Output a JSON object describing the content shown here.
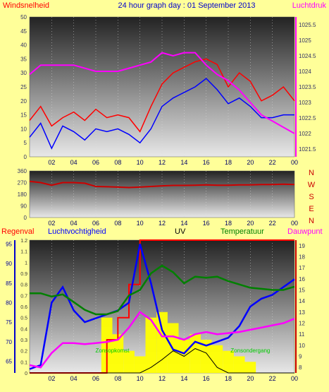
{
  "title": "24 hour graph day : 01 September 2013",
  "colors": {
    "background": "#ffff99",
    "wind": "#ff0000",
    "gust": "#0000ff",
    "pressure": "#ff00ff",
    "direction": "#cc0000",
    "rain": "#ff0000",
    "humidity": "#0000ff",
    "uv": "#ffff00",
    "temperature": "#008000",
    "dewpoint": "#ff00ff",
    "solar": "#000000"
  },
  "x_ticks": [
    "02",
    "04",
    "06",
    "08",
    "10",
    "12",
    "14",
    "16",
    "18",
    "20",
    "22",
    "00"
  ],
  "chart_data": [
    {
      "type": "line",
      "left_label": "Windsnelheid",
      "right_label": "Luchtdruk",
      "y_left": {
        "range": [
          0,
          50
        ],
        "ticks": [
          "0",
          "5",
          "10",
          "15",
          "20",
          "25",
          "30",
          "35",
          "40",
          "45",
          "50"
        ]
      },
      "y_right": {
        "range": [
          1021.25,
          1025.75
        ],
        "ticks": [
          "1021.5",
          "1022",
          "1022.5",
          "1023",
          "1023.5",
          "1024",
          "1024.5",
          "1025",
          "1025.5"
        ]
      },
      "x": [
        0,
        1,
        2,
        3,
        4,
        5,
        6,
        7,
        8,
        9,
        10,
        11,
        12,
        13,
        14,
        15,
        16,
        17,
        18,
        19,
        20,
        21,
        22,
        23,
        24
      ],
      "series": [
        {
          "key": "wind",
          "axis": "left",
          "values": [
            13,
            18,
            11,
            14,
            16,
            13,
            17,
            14,
            15,
            14,
            9,
            18,
            26,
            30,
            32,
            34,
            35,
            33,
            25,
            30,
            27,
            20,
            22,
            25,
            20
          ]
        },
        {
          "key": "gust",
          "axis": "left",
          "values": [
            7,
            12,
            3,
            11,
            9,
            6,
            10,
            9,
            10,
            8,
            5,
            10,
            18,
            21,
            23,
            25,
            28,
            24,
            19,
            21,
            18,
            14,
            14,
            15,
            15
          ]
        },
        {
          "key": "pressure",
          "axis": "right",
          "values": [
            1023.9,
            1024.2,
            1024.2,
            1024.2,
            1024.2,
            1024.1,
            1024.0,
            1024.0,
            1024.0,
            1024.1,
            1024.2,
            1024.3,
            1024.6,
            1024.5,
            1024.6,
            1024.6,
            1024.2,
            1023.9,
            1023.7,
            1023.4,
            1023.0,
            1022.6,
            1022.4,
            1022.2,
            1022.0
          ]
        }
      ]
    },
    {
      "type": "line",
      "y_left": {
        "range": [
          0,
          360
        ],
        "ticks": [
          "0",
          "90",
          "180",
          "270",
          "360"
        ]
      },
      "compass": [
        "N",
        "W",
        "S",
        "E",
        "N"
      ],
      "x": [
        0,
        1,
        2,
        3,
        4,
        5,
        6,
        7,
        8,
        9,
        10,
        11,
        12,
        13,
        14,
        15,
        16,
        17,
        18,
        19,
        20,
        21,
        22,
        23,
        24
      ],
      "series": [
        {
          "key": "direction",
          "axis": "left",
          "values": [
            280,
            270,
            250,
            270,
            270,
            265,
            240,
            238,
            235,
            232,
            235,
            240,
            245,
            248,
            248,
            250,
            252,
            250,
            250,
            252,
            252,
            255,
            255,
            258,
            255
          ]
        }
      ]
    },
    {
      "type": "line",
      "labels": [
        "Regenval",
        "Luchtvochtigheid",
        "UV",
        "Temperatuur",
        "Dauwpunt"
      ],
      "y_left": {
        "range": [
          62,
          96
        ],
        "ticks": [
          "65",
          "70",
          "75",
          "80",
          "85",
          "90",
          "95"
        ]
      },
      "y_uv": {
        "range": [
          0,
          1.2
        ],
        "ticks": [
          "0",
          "0.1",
          "0.2",
          "0.3",
          "0.4",
          "0.5",
          "0.6",
          "0.7",
          "0.8",
          "0.9",
          "1",
          "1.1",
          "1.2"
        ]
      },
      "y_right": {
        "range": [
          7.5,
          19.5
        ],
        "ticks": [
          "8",
          "9",
          "10",
          "11",
          "12",
          "13",
          "14",
          "15",
          "16",
          "17",
          "18",
          "19"
        ]
      },
      "annotations": [
        "Zonsopkomst",
        "Zonsondergang"
      ],
      "x": [
        0,
        1,
        2,
        3,
        4,
        5,
        6,
        7,
        8,
        9,
        10,
        11,
        12,
        13,
        14,
        15,
        16,
        17,
        18,
        19,
        20,
        21,
        22,
        23,
        24
      ],
      "series": [
        {
          "key": "humidity",
          "axis": "left",
          "values": [
            63,
            64,
            80,
            84,
            78,
            75,
            76,
            77,
            78,
            80,
            95,
            85,
            73,
            68,
            67,
            70,
            69,
            70,
            71,
            74,
            79,
            81,
            82,
            84,
            86
          ]
        },
        {
          "key": "temperature",
          "axis": "right",
          "values": [
            14.7,
            14.7,
            14.4,
            14.6,
            13.9,
            13.2,
            12.8,
            12.8,
            13.1,
            14.5,
            15.0,
            16.5,
            17.2,
            16.6,
            15.6,
            16.2,
            16.1,
            16.2,
            15.8,
            15.5,
            15.2,
            15.1,
            15.0,
            15.0,
            15.3
          ]
        },
        {
          "key": "dewpoint",
          "axis": "right",
          "values": [
            8.2,
            8.0,
            9.3,
            10.2,
            10.2,
            10.1,
            10.2,
            10.3,
            10.5,
            11.6,
            13.0,
            12.3,
            10.8,
            10.8,
            10.5,
            11.0,
            11.2,
            11.0,
            11.1,
            11.2,
            11.4,
            11.6,
            11.8,
            12.0,
            12.4
          ]
        },
        {
          "key": "rain",
          "axis": "uv",
          "values": [
            0,
            0,
            0,
            0,
            0,
            0,
            0,
            0.3,
            0.5,
            0.8,
            1.2,
            1.2,
            1.2,
            1.2,
            1.2,
            1.2,
            1.2,
            1.2,
            1.2,
            1.2,
            1.2,
            1.2,
            1.2,
            1.2,
            1.2
          ]
        },
        {
          "key": "uv",
          "axis": "uv",
          "type": "bar",
          "values": [
            0,
            0,
            0,
            0,
            0,
            0,
            0,
            0.5,
            0.35,
            0.2,
            0.15,
            0.5,
            0.55,
            0.45,
            0.3,
            0.35,
            0.3,
            0.25,
            0.2,
            0.15,
            0.1,
            0,
            0,
            0,
            0
          ]
        },
        {
          "key": "solar",
          "axis": "uv",
          "values": [
            0,
            0,
            0,
            0,
            0,
            0,
            0,
            0,
            0,
            0,
            0,
            0.05,
            0.12,
            0.2,
            0.15,
            0.22,
            0.18,
            0.05,
            0,
            0,
            0,
            0,
            0,
            0,
            0
          ]
        }
      ]
    }
  ]
}
